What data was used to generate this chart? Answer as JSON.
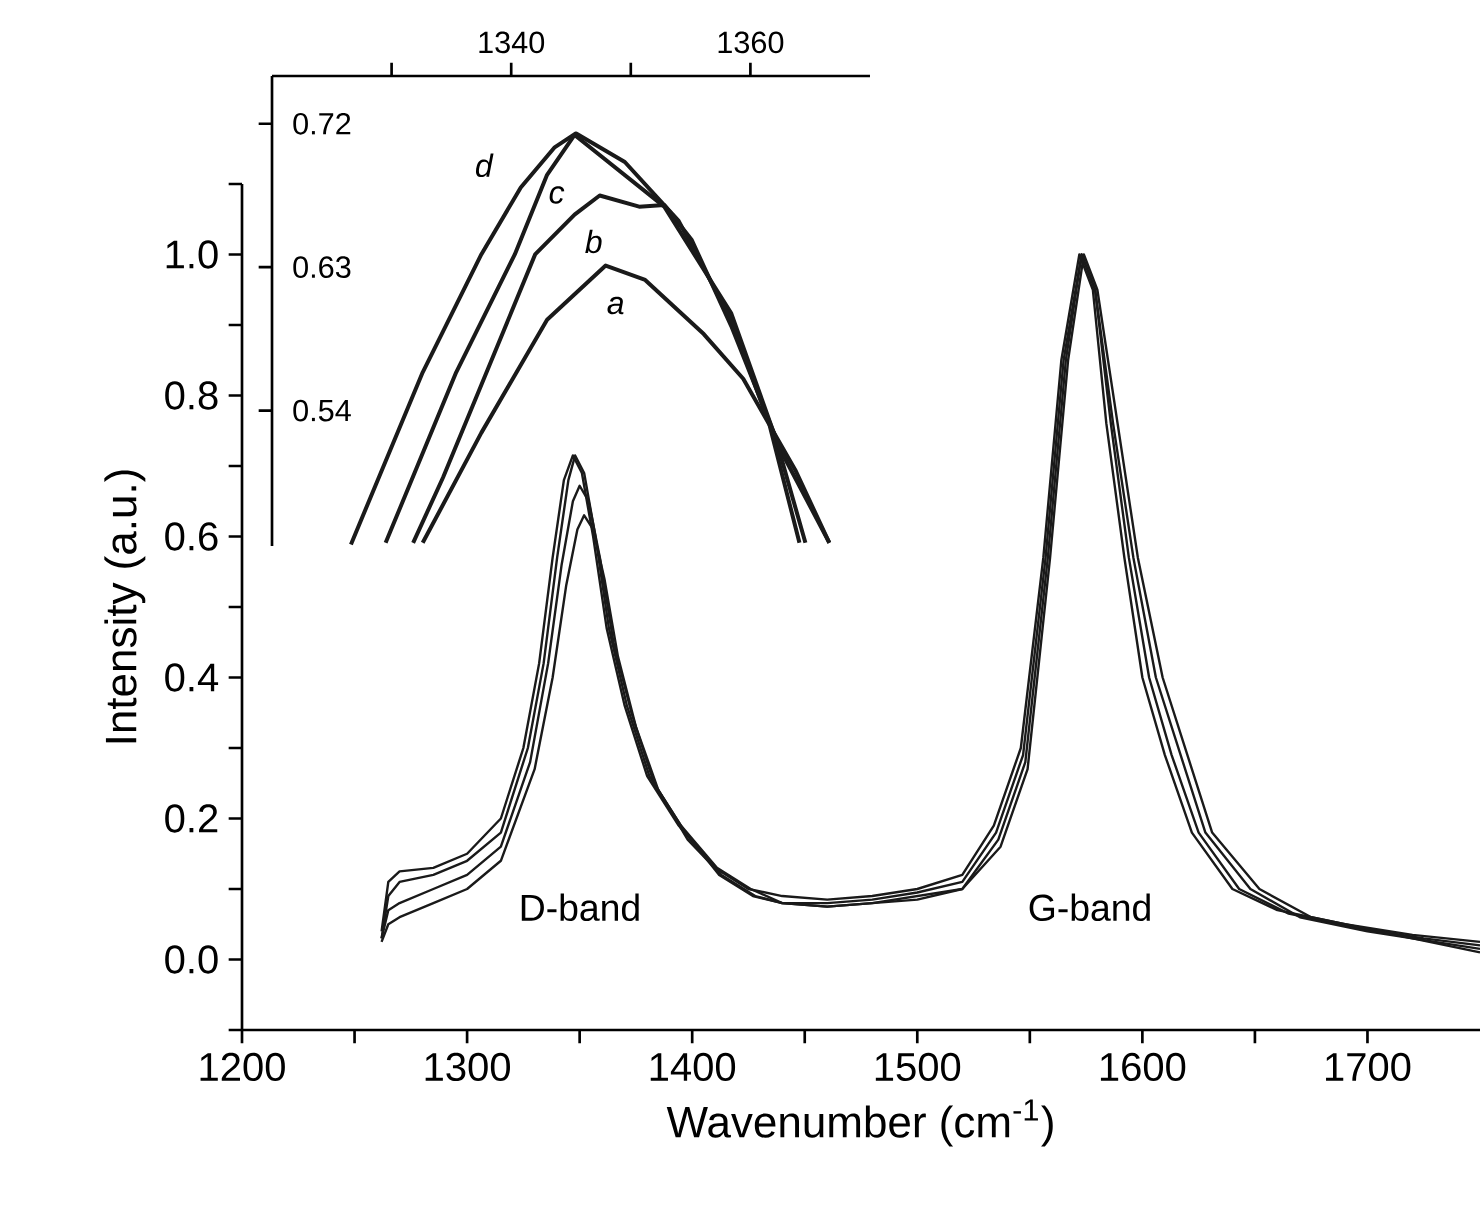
{
  "chart_data": [
    {
      "type": "line",
      "xlabel": "Wavenumber (cm$^{-1}$)",
      "ylabel": "Intensity (a.u.)",
      "xlim": [
        1200,
        1750
      ],
      "ylim": [
        -0.1,
        1.1
      ],
      "xticks": [
        1200,
        {
          "value": 1250,
          "label": null
        },
        1300,
        {
          "value": 1350,
          "label": null
        },
        1400,
        {
          "value": 1450,
          "label": null
        },
        1500,
        {
          "value": 1550,
          "label": null
        },
        1600,
        {
          "value": 1650,
          "label": null
        },
        1700
      ],
      "yticks": [
        {
          "value": -0.1,
          "label": null
        },
        {
          "value": 0,
          "label": "0.0"
        },
        {
          "value": 0.1,
          "label": null
        },
        {
          "value": 0.2,
          "label": "0.2"
        },
        {
          "value": 0.3,
          "label": null
        },
        {
          "value": 0.4,
          "label": "0.4"
        },
        {
          "value": 0.5,
          "label": null
        },
        {
          "value": 0.6,
          "label": "0.6"
        },
        {
          "value": 0.7,
          "label": null
        },
        {
          "value": 0.8,
          "label": "0.8"
        },
        {
          "value": 0.9,
          "label": null
        },
        {
          "value": 1.0,
          "label": "1.0"
        },
        {
          "value": 1.1,
          "label": null
        }
      ],
      "annotations": [
        "D-band",
        "G-band"
      ],
      "series": [
        {
          "color": "#1a1a1a",
          "x": [
            1262,
            1265,
            1270,
            1285,
            1300,
            1315,
            1325,
            1332,
            1338,
            1343,
            1347,
            1351,
            1356,
            1362,
            1370,
            1380,
            1394,
            1410,
            1425,
            1440,
            1460,
            1480,
            1500,
            1520,
            1534,
            1546,
            1556,
            1564,
            1572,
            1578,
            1584,
            1592,
            1600,
            1610,
            1622,
            1640,
            1660,
            1690,
            1720,
            1750
          ],
          "values": [
            0.04,
            0.11,
            0.125,
            0.13,
            0.15,
            0.2,
            0.3,
            0.42,
            0.57,
            0.68,
            0.715,
            0.69,
            0.6,
            0.47,
            0.36,
            0.26,
            0.19,
            0.13,
            0.1,
            0.09,
            0.085,
            0.09,
            0.1,
            0.12,
            0.19,
            0.3,
            0.57,
            0.85,
            1.0,
            0.95,
            0.76,
            0.57,
            0.4,
            0.29,
            0.18,
            0.1,
            0.07,
            0.05,
            0.035,
            0.025
          ]
        },
        {
          "color": "#1a1a1a",
          "x": [
            1262,
            1265,
            1270,
            1285,
            1300,
            1315,
            1327,
            1334,
            1340,
            1345,
            1348,
            1352,
            1357,
            1363,
            1371,
            1381,
            1395,
            1411,
            1426,
            1440,
            1460,
            1480,
            1500,
            1520,
            1535,
            1547,
            1557,
            1565,
            1573,
            1579,
            1586,
            1594,
            1603,
            1613,
            1625,
            1643,
            1665,
            1695,
            1725,
            1750
          ],
          "values": [
            0.03,
            0.09,
            0.11,
            0.12,
            0.14,
            0.18,
            0.3,
            0.42,
            0.57,
            0.68,
            0.715,
            0.69,
            0.6,
            0.47,
            0.36,
            0.26,
            0.19,
            0.13,
            0.1,
            0.08,
            0.08,
            0.085,
            0.095,
            0.11,
            0.18,
            0.29,
            0.57,
            0.85,
            1.0,
            0.95,
            0.76,
            0.57,
            0.4,
            0.29,
            0.18,
            0.1,
            0.065,
            0.045,
            0.03,
            0.02
          ]
        },
        {
          "color": "#1a1a1a",
          "x": [
            1262,
            1265,
            1270,
            1285,
            1300,
            1315,
            1328,
            1336,
            1342,
            1347,
            1350,
            1354,
            1359,
            1365,
            1373,
            1383,
            1397,
            1412,
            1427,
            1440,
            1460,
            1480,
            1500,
            1520,
            1536,
            1548,
            1558,
            1566,
            1573,
            1579,
            1587,
            1596,
            1606,
            1617,
            1628,
            1648,
            1670,
            1700,
            1730,
            1750
          ],
          "values": [
            0.03,
            0.07,
            0.08,
            0.1,
            0.12,
            0.16,
            0.28,
            0.42,
            0.56,
            0.65,
            0.672,
            0.65,
            0.57,
            0.45,
            0.35,
            0.25,
            0.18,
            0.12,
            0.09,
            0.08,
            0.075,
            0.08,
            0.09,
            0.1,
            0.17,
            0.28,
            0.57,
            0.85,
            1.0,
            0.95,
            0.76,
            0.57,
            0.4,
            0.29,
            0.18,
            0.1,
            0.06,
            0.04,
            0.025,
            0.015
          ]
        },
        {
          "color": "#1a1a1a",
          "x": [
            1262,
            1265,
            1270,
            1285,
            1300,
            1315,
            1330,
            1338,
            1344,
            1349,
            1352,
            1356,
            1361,
            1367,
            1375,
            1385,
            1398,
            1413,
            1428,
            1440,
            1460,
            1480,
            1500,
            1520,
            1537,
            1549,
            1559,
            1567,
            1574,
            1580,
            1589,
            1598,
            1609,
            1620,
            1631,
            1652,
            1675,
            1705,
            1735,
            1750
          ],
          "values": [
            0.025,
            0.05,
            0.06,
            0.08,
            0.1,
            0.14,
            0.27,
            0.4,
            0.53,
            0.61,
            0.63,
            0.61,
            0.54,
            0.43,
            0.33,
            0.24,
            0.17,
            0.12,
            0.09,
            0.08,
            0.075,
            0.08,
            0.085,
            0.1,
            0.16,
            0.27,
            0.57,
            0.85,
            1.0,
            0.95,
            0.76,
            0.57,
            0.4,
            0.29,
            0.18,
            0.1,
            0.06,
            0.04,
            0.02,
            0.01
          ]
        }
      ]
    },
    {
      "type": "line",
      "xlim": [
        1320,
        1370
      ],
      "ylim": [
        0.455,
        0.75
      ],
      "xticks": [
        {
          "value": 1330,
          "label": null
        },
        1340,
        {
          "value": 1350,
          "label": null
        },
        1360
      ],
      "yticks": [
        0.54,
        0.63,
        0.72
      ],
      "series": [
        {
          "name": "a",
          "color": "#1a1a1a",
          "x": [
            1332.6,
            1337.5,
            1343,
            1347.9,
            1351.2,
            1356.1,
            1359.4,
            1363.8,
            1366.6
          ],
          "values": [
            0.457,
            0.526,
            0.597,
            0.631,
            0.622,
            0.588,
            0.56,
            0.502,
            0.457
          ]
        },
        {
          "name": "b",
          "color": "#1a1a1a",
          "x": [
            1331.8,
            1334.3,
            1337.5,
            1342,
            1345.3,
            1347.4,
            1350.7,
            1352.8,
            1355.1,
            1358.4,
            1362.6,
            1366.6
          ],
          "values": [
            0.457,
            0.498,
            0.556,
            0.638,
            0.663,
            0.675,
            0.668,
            0.669,
            0.647,
            0.593,
            0.514,
            0.457
          ]
        },
        {
          "name": "c",
          "color": "#1a1a1a",
          "x": [
            1329.5,
            1335.4,
            1340.3,
            1343,
            1345.3,
            1352.8,
            1358.4,
            1362.1,
            1364.6
          ],
          "values": [
            0.457,
            0.564,
            0.638,
            0.688,
            0.713,
            0.668,
            0.601,
            0.523,
            0.457
          ]
        },
        {
          "name": "d",
          "color": "#1a1a1a",
          "x": [
            1326.6,
            1332.6,
            1337.5,
            1340.8,
            1343.6,
            1345.4,
            1349.5,
            1354,
            1358.4,
            1361.6,
            1364.1
          ],
          "values": [
            0.456,
            0.564,
            0.638,
            0.68,
            0.705,
            0.714,
            0.696,
            0.659,
            0.597,
            0.531,
            0.457
          ]
        }
      ]
    }
  ]
}
